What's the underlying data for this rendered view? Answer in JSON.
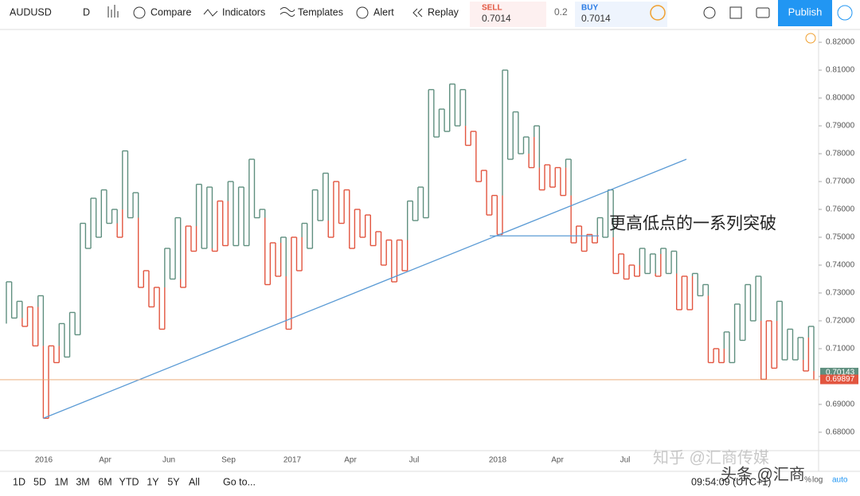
{
  "toolbar": {
    "symbol": "AUDUSD",
    "interval": "D",
    "compare": "Compare",
    "indicators": "Indicators",
    "templates": "Templates",
    "alert": "Alert",
    "replay": "Replay",
    "sell_label": "SELL",
    "sell_price": "0.7014",
    "spread": "0.2",
    "buy_label": "BUY",
    "buy_price": "0.7014",
    "publish": "Publish"
  },
  "chart_data": {
    "type": "kagi",
    "values": [
      0.719,
      0.734,
      0.721,
      0.727,
      0.718,
      0.725,
      0.711,
      0.729,
      0.685,
      0.711,
      0.705,
      0.719,
      0.707,
      0.723,
      0.715,
      0.755,
      0.746,
      0.764,
      0.75,
      0.767,
      0.755,
      0.76,
      0.75,
      0.781,
      0.757,
      0.766,
      0.732,
      0.738,
      0.725,
      0.732,
      0.717,
      0.746,
      0.735,
      0.757,
      0.732,
      0.754,
      0.745,
      0.769,
      0.746,
      0.768,
      0.745,
      0.763,
      0.747,
      0.77,
      0.747,
      0.768,
      0.747,
      0.778,
      0.757,
      0.76,
      0.733,
      0.748,
      0.736,
      0.75,
      0.717,
      0.75,
      0.738,
      0.755,
      0.746,
      0.767,
      0.756,
      0.773,
      0.75,
      0.77,
      0.755,
      0.767,
      0.746,
      0.76,
      0.75,
      0.758,
      0.747,
      0.752,
      0.74,
      0.749,
      0.734,
      0.749,
      0.738,
      0.763,
      0.756,
      0.768,
      0.757,
      0.803,
      0.786,
      0.796,
      0.788,
      0.805,
      0.79,
      0.803,
      0.783,
      0.788,
      0.77,
      0.774,
      0.758,
      0.765,
      0.751,
      0.81,
      0.778,
      0.795,
      0.78,
      0.786,
      0.775,
      0.79,
      0.767,
      0.776,
      0.768,
      0.775,
      0.765,
      0.778,
      0.748,
      0.754,
      0.745,
      0.751,
      0.748,
      0.757,
      0.75,
      0.767,
      0.737,
      0.744,
      0.735,
      0.74,
      0.736,
      0.746,
      0.737,
      0.744,
      0.736,
      0.746,
      0.737,
      0.745,
      0.724,
      0.736,
      0.724,
      0.737,
      0.729,
      0.733,
      0.705,
      0.71,
      0.705,
      0.716,
      0.705,
      0.726,
      0.713,
      0.733,
      0.72,
      0.736,
      0.699,
      0.72,
      0.703,
      0.727,
      0.706,
      0.717,
      0.706,
      0.714,
      0.702,
      0.718,
      0.699
    ],
    "colors": {
      "yang": "#5f8f7f",
      "yin": "#e2553f"
    },
    "ylim": [
      0.6734,
      0.8246
    ],
    "yticks": [
      {
        "value": 0.68,
        "label": "0.68000"
      },
      {
        "value": 0.69,
        "label": "0.69000"
      },
      {
        "value": 0.7,
        "label": "0.70000"
      },
      {
        "value": 0.71,
        "label": "0.71000"
      },
      {
        "value": 0.72,
        "label": "0.72000"
      },
      {
        "value": 0.73,
        "label": "0.73000"
      },
      {
        "value": 0.74,
        "label": "0.74000"
      },
      {
        "value": 0.75,
        "label": "0.75000"
      },
      {
        "value": 0.76,
        "label": "0.76000"
      },
      {
        "value": 0.77,
        "label": "0.77000"
      },
      {
        "value": 0.78,
        "label": "0.78000"
      },
      {
        "value": 0.79,
        "label": "0.79000"
      },
      {
        "value": 0.8,
        "label": "0.80000"
      },
      {
        "value": 0.81,
        "label": "0.81000"
      },
      {
        "value": 0.82,
        "label": "0.82000"
      }
    ],
    "x_labels": [
      "2016",
      "Apr",
      "Jun",
      "Sep",
      "2017",
      "Apr",
      "Jul",
      "2018",
      "Apr",
      "Jul"
    ],
    "trendline": [
      0.685,
      0.778
    ],
    "support_level": 0.7505,
    "last_price": {
      "value": 0.70143,
      "label": "0.70143"
    },
    "close_price": {
      "value": 0.69897,
      "label": "0.69897"
    },
    "annotation": "更高低点的一系列突破"
  },
  "bottom_bar": {
    "ranges": [
      "1D",
      "5D",
      "1M",
      "3M",
      "6M",
      "YTD",
      "1Y",
      "5Y",
      "All"
    ],
    "goto": "Go to...",
    "time": "09:54:09 (UTC+1)",
    "percent": "%",
    "log": "log",
    "auto": "auto"
  },
  "watermarks": [
    "知乎 @汇商传媒",
    "头条 @汇商"
  ]
}
